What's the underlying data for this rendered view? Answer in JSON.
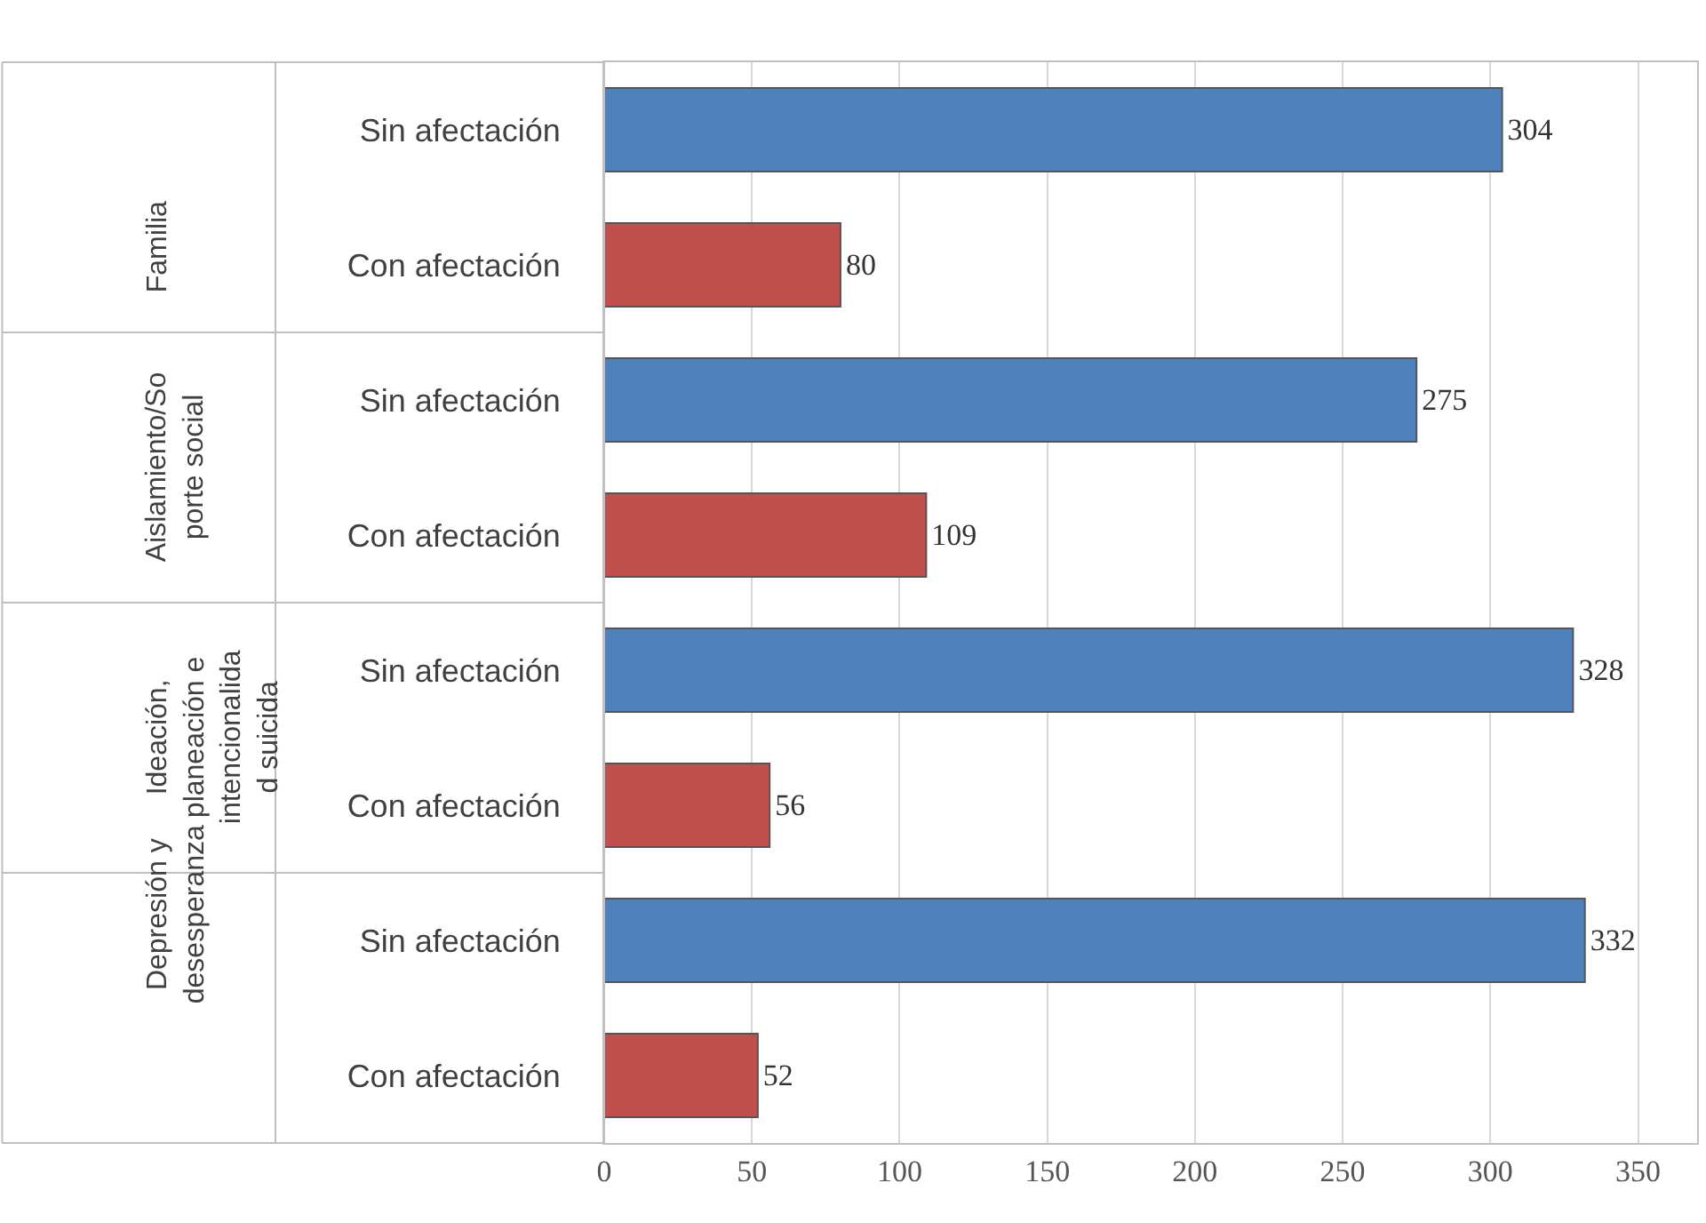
{
  "chart_data": {
    "type": "bar",
    "orientation": "horizontal",
    "categories": [
      "Sin afectación",
      "Con afectación",
      "Sin afectación",
      "Con afectación",
      "Sin afectación",
      "Con afectación",
      "Sin afectación",
      "Con afectación"
    ],
    "values": [
      304,
      80,
      275,
      109,
      328,
      56,
      332,
      52
    ],
    "colors": [
      "#4f81bd",
      "#c0504d",
      "#4f81bd",
      "#c0504d",
      "#4f81bd",
      "#c0504d",
      "#4f81bd",
      "#c0504d"
    ],
    "annotations": [
      "Familia",
      "Aislamiento/Soporte social",
      "Ideación, planeación e intencionalidad suicida",
      "Depresión y desesperanza"
    ],
    "xlim": [
      0,
      370
    ],
    "xticks": [
      0,
      50,
      100,
      150,
      200,
      250,
      300,
      350
    ],
    "grid": "x",
    "data_labels": true,
    "legend": false
  }
}
